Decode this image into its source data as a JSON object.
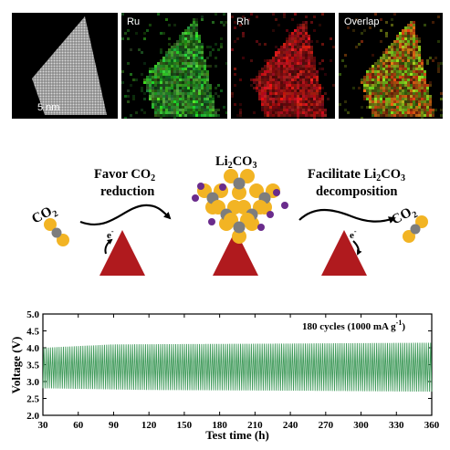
{
  "eds_panels": {
    "ru_label": "Ru",
    "rh_label": "Rh",
    "overlap_label": "Overlap",
    "scale_bar_label": "5 nm",
    "ru_color": "#2ea52b",
    "rh_color": "#d0171c"
  },
  "schematic": {
    "left_molecule_label": "CO",
    "left_molecule_sub": "2",
    "favor_line1_main": "Favor CO",
    "favor_line1_sub": "2",
    "favor_line2": "reduction",
    "product_main": "Li",
    "product_sub1": "2",
    "product_mid": "CO",
    "product_sub2": "3",
    "facilitate_line1_a": "Facilitate Li",
    "facilitate_line1_sub1": "2",
    "facilitate_line1_b": "CO",
    "facilitate_line1_sub2": "3",
    "facilitate_line2": "decomposition",
    "right_molecule_label": "CO",
    "right_molecule_sub": "2",
    "electron_label": "e",
    "electron_sup": "-",
    "triangle_color": "#b01a1e",
    "o_atom_color": "#f2b424",
    "c_atom_color": "#7d7d7d",
    "li_atom_color": "#6a2c8c"
  },
  "chart_data": {
    "type": "line",
    "xlabel": "Test time (h)",
    "ylabel": "Voltage (V)",
    "annotation_main": "180 cycles (1000 mA g",
    "annotation_sup": "-1",
    "annotation_end": ")",
    "xlim": [
      30,
      360
    ],
    "ylim": [
      2.0,
      5.0
    ],
    "x_ticks": [
      30,
      60,
      90,
      120,
      150,
      180,
      210,
      240,
      270,
      300,
      330,
      360
    ],
    "y_ticks": [
      2.0,
      2.5,
      3.0,
      3.5,
      4.0,
      4.5,
      5.0
    ],
    "series": [
      {
        "color": "#3f9a5a",
        "cycles": 180,
        "time_start": 30,
        "time_end": 360,
        "charge_voltage": [
          {
            "x": 30,
            "y": 4.0
          },
          {
            "x": 90,
            "y": 4.1
          },
          {
            "x": 210,
            "y": 4.12
          },
          {
            "x": 360,
            "y": 4.15
          }
        ],
        "discharge_voltage": [
          {
            "x": 30,
            "y": 2.8
          },
          {
            "x": 120,
            "y": 2.75
          },
          {
            "x": 240,
            "y": 2.73
          },
          {
            "x": 360,
            "y": 2.7
          }
        ]
      }
    ]
  }
}
